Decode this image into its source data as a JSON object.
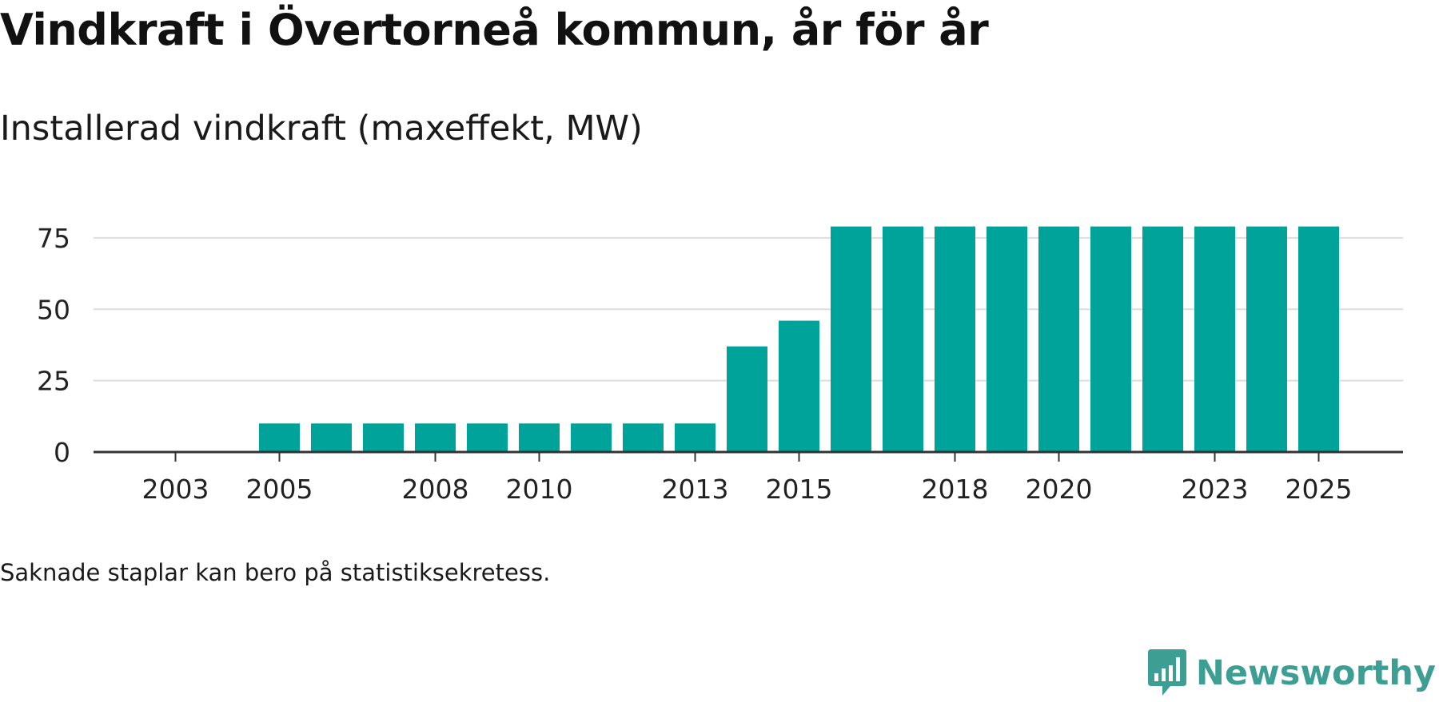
{
  "title": "Vindkraft i Övertorneå kommun, år för år",
  "subtitle": "Installerad vindkraft (maxeffekt, MW)",
  "footnote": "Saknade staplar kan bero på statistiksekretess.",
  "brand": {
    "name": "Newsworthy",
    "color": "#3d9f94"
  },
  "colors": {
    "bar": "#00a39a",
    "grid": "#dddddd",
    "axis": "#333333",
    "tick_text": "#222222"
  },
  "chart_data": {
    "type": "bar",
    "categories": [
      "2003",
      "2004",
      "2005",
      "2006",
      "2007",
      "2008",
      "2009",
      "2010",
      "2011",
      "2012",
      "2013",
      "2014",
      "2015",
      "2016",
      "2017",
      "2018",
      "2019",
      "2020",
      "2021",
      "2022",
      "2023",
      "2024",
      "2025"
    ],
    "values": [
      null,
      null,
      10,
      10,
      10,
      10,
      10,
      10,
      10,
      10,
      10,
      37,
      46,
      79,
      79,
      79,
      79,
      79,
      79,
      79,
      79,
      79,
      79
    ],
    "x_tick_labels": [
      "2003",
      "2005",
      "2008",
      "2010",
      "2013",
      "2015",
      "2018",
      "2020",
      "2023",
      "2025"
    ],
    "y_ticks": [
      0,
      25,
      50,
      75
    ],
    "ylim": [
      0,
      80
    ],
    "xlabel": "",
    "ylabel": "",
    "grid": true
  }
}
